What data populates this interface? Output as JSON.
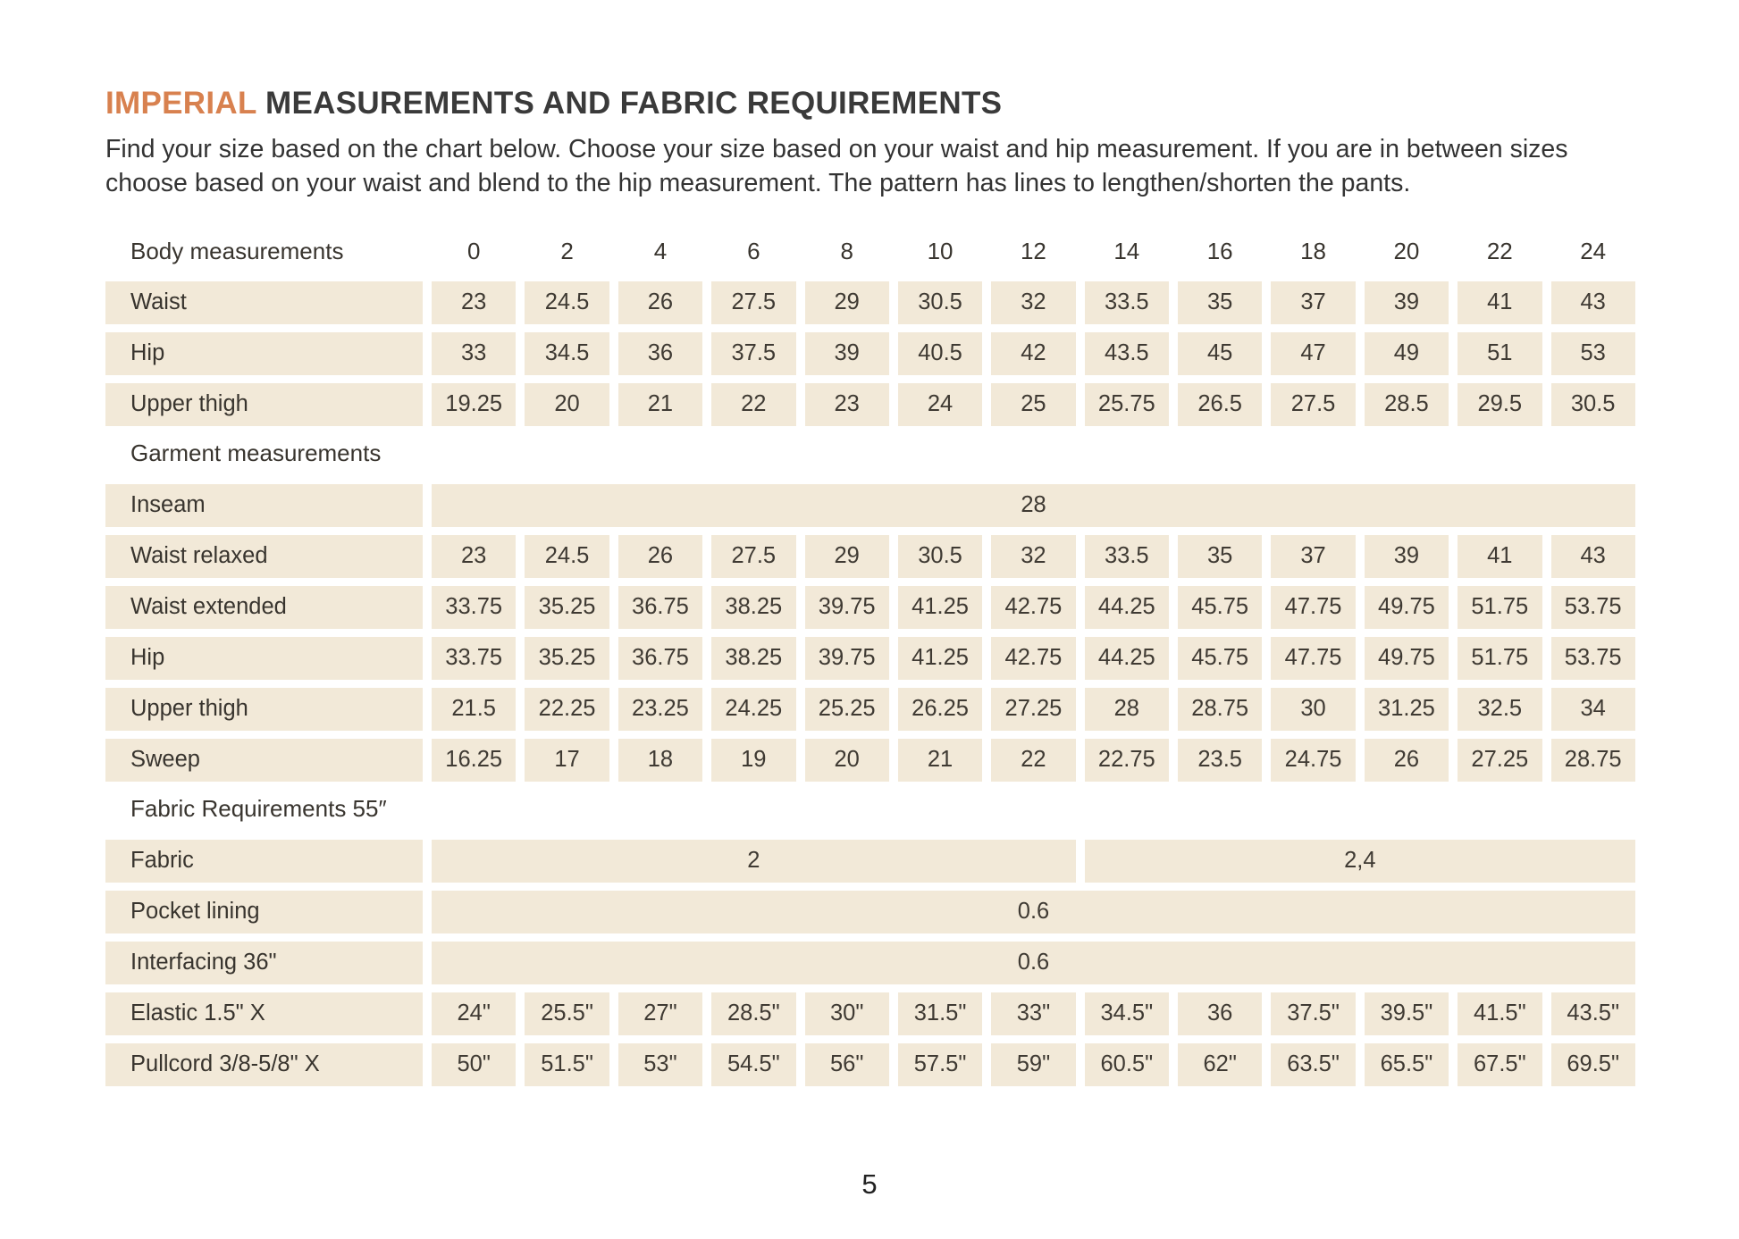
{
  "page": {
    "title": {
      "highlight": "IMPERIAL",
      "rest": "MEASUREMENTS AND FABRIC REQUIREMENTS"
    },
    "intro": "Find your size based on the chart below. Choose your size based on your waist and hip measurement. If you are in between sizes choose based on your waist and blend to the hip measurement. The pattern has lines to lengthen/shorten the pants.",
    "page_number": "5"
  },
  "colors": {
    "accent_orange": "#d8814f",
    "cell_beige": "#f2e9d8",
    "text_dark": "#38342e"
  },
  "table": {
    "sizes": [
      "0",
      "2",
      "4",
      "6",
      "8",
      "10",
      "12",
      "14",
      "16",
      "18",
      "20",
      "22",
      "24"
    ],
    "sections": [
      {
        "label": "Body measurements",
        "show_sizes": true,
        "rows": [
          {
            "label": "Waist",
            "cells": [
              {
                "t": "23",
                "s": 1
              },
              {
                "t": "24.5",
                "s": 1
              },
              {
                "t": "26",
                "s": 1
              },
              {
                "t": "27.5",
                "s": 1
              },
              {
                "t": "29",
                "s": 1
              },
              {
                "t": "30.5",
                "s": 1
              },
              {
                "t": "32",
                "s": 1
              },
              {
                "t": "33.5",
                "s": 1
              },
              {
                "t": "35",
                "s": 1
              },
              {
                "t": "37",
                "s": 1
              },
              {
                "t": "39",
                "s": 1
              },
              {
                "t": "41",
                "s": 1
              },
              {
                "t": "43",
                "s": 1
              }
            ]
          },
          {
            "label": "Hip",
            "cells": [
              {
                "t": "33",
                "s": 1
              },
              {
                "t": "34.5",
                "s": 1
              },
              {
                "t": "36",
                "s": 1
              },
              {
                "t": "37.5",
                "s": 1
              },
              {
                "t": "39",
                "s": 1
              },
              {
                "t": "40.5",
                "s": 1
              },
              {
                "t": "42",
                "s": 1
              },
              {
                "t": "43.5",
                "s": 1
              },
              {
                "t": "45",
                "s": 1
              },
              {
                "t": "47",
                "s": 1
              },
              {
                "t": "49",
                "s": 1
              },
              {
                "t": "51",
                "s": 1
              },
              {
                "t": "53",
                "s": 1
              }
            ]
          },
          {
            "label": "Upper thigh",
            "cells": [
              {
                "t": "19.25",
                "s": 1
              },
              {
                "t": "20",
                "s": 1
              },
              {
                "t": "21",
                "s": 1
              },
              {
                "t": "22",
                "s": 1
              },
              {
                "t": "23",
                "s": 1
              },
              {
                "t": "24",
                "s": 1
              },
              {
                "t": "25",
                "s": 1
              },
              {
                "t": "25.75",
                "s": 1
              },
              {
                "t": "26.5",
                "s": 1
              },
              {
                "t": "27.5",
                "s": 1
              },
              {
                "t": "28.5",
                "s": 1
              },
              {
                "t": "29.5",
                "s": 1
              },
              {
                "t": "30.5",
                "s": 1
              }
            ]
          }
        ]
      },
      {
        "label": "Garment measurements",
        "show_sizes": false,
        "rows": [
          {
            "label": "Inseam",
            "cells": [
              {
                "t": "28",
                "s": 13
              }
            ]
          },
          {
            "label": "Waist relaxed",
            "cells": [
              {
                "t": "23",
                "s": 1
              },
              {
                "t": "24.5",
                "s": 1
              },
              {
                "t": "26",
                "s": 1
              },
              {
                "t": "27.5",
                "s": 1
              },
              {
                "t": "29",
                "s": 1
              },
              {
                "t": "30.5",
                "s": 1
              },
              {
                "t": "32",
                "s": 1
              },
              {
                "t": "33.5",
                "s": 1
              },
              {
                "t": "35",
                "s": 1
              },
              {
                "t": "37",
                "s": 1
              },
              {
                "t": "39",
                "s": 1
              },
              {
                "t": "41",
                "s": 1
              },
              {
                "t": "43",
                "s": 1
              }
            ]
          },
          {
            "label": "Waist extended",
            "cells": [
              {
                "t": "33.75",
                "s": 1
              },
              {
                "t": "35.25",
                "s": 1
              },
              {
                "t": "36.75",
                "s": 1
              },
              {
                "t": "38.25",
                "s": 1
              },
              {
                "t": "39.75",
                "s": 1
              },
              {
                "t": "41.25",
                "s": 1
              },
              {
                "t": "42.75",
                "s": 1
              },
              {
                "t": "44.25",
                "s": 1
              },
              {
                "t": "45.75",
                "s": 1
              },
              {
                "t": "47.75",
                "s": 1
              },
              {
                "t": "49.75",
                "s": 1
              },
              {
                "t": "51.75",
                "s": 1
              },
              {
                "t": "53.75",
                "s": 1
              }
            ]
          },
          {
            "label": "Hip",
            "cells": [
              {
                "t": "33.75",
                "s": 1
              },
              {
                "t": "35.25",
                "s": 1
              },
              {
                "t": "36.75",
                "s": 1
              },
              {
                "t": "38.25",
                "s": 1
              },
              {
                "t": "39.75",
                "s": 1
              },
              {
                "t": "41.25",
                "s": 1
              },
              {
                "t": "42.75",
                "s": 1
              },
              {
                "t": "44.25",
                "s": 1
              },
              {
                "t": "45.75",
                "s": 1
              },
              {
                "t": "47.75",
                "s": 1
              },
              {
                "t": "49.75",
                "s": 1
              },
              {
                "t": "51.75",
                "s": 1
              },
              {
                "t": "53.75",
                "s": 1
              }
            ]
          },
          {
            "label": "Upper thigh",
            "cells": [
              {
                "t": "21.5",
                "s": 1
              },
              {
                "t": "22.25",
                "s": 1
              },
              {
                "t": "23.25",
                "s": 1
              },
              {
                "t": "24.25",
                "s": 1
              },
              {
                "t": "25.25",
                "s": 1
              },
              {
                "t": "26.25",
                "s": 1
              },
              {
                "t": "27.25",
                "s": 1
              },
              {
                "t": "28",
                "s": 1
              },
              {
                "t": "28.75",
                "s": 1
              },
              {
                "t": "30",
                "s": 1
              },
              {
                "t": "31.25",
                "s": 1
              },
              {
                "t": "32.5",
                "s": 1
              },
              {
                "t": "34",
                "s": 1
              }
            ]
          },
          {
            "label": "Sweep",
            "cells": [
              {
                "t": "16.25",
                "s": 1
              },
              {
                "t": "17",
                "s": 1
              },
              {
                "t": "18",
                "s": 1
              },
              {
                "t": "19",
                "s": 1
              },
              {
                "t": "20",
                "s": 1
              },
              {
                "t": "21",
                "s": 1
              },
              {
                "t": "22",
                "s": 1
              },
              {
                "t": "22.75",
                "s": 1
              },
              {
                "t": "23.5",
                "s": 1
              },
              {
                "t": "24.75",
                "s": 1
              },
              {
                "t": "26",
                "s": 1
              },
              {
                "t": "27.25",
                "s": 1
              },
              {
                "t": "28.75",
                "s": 1
              }
            ]
          }
        ]
      },
      {
        "label": "Fabric Requirements 55″",
        "show_sizes": false,
        "rows": [
          {
            "label": "Fabric",
            "cells": [
              {
                "t": "2",
                "s": 7
              },
              {
                "t": "2,4",
                "s": 6
              }
            ]
          },
          {
            "label": "Pocket lining",
            "cells": [
              {
                "t": "0.6",
                "s": 13
              }
            ]
          },
          {
            "label": "Interfacing 36\"",
            "cells": [
              {
                "t": "0.6",
                "s": 13
              }
            ]
          },
          {
            "label": "Elastic  1.5\" X",
            "cells": [
              {
                "t": "24\"",
                "s": 1
              },
              {
                "t": "25.5\"",
                "s": 1
              },
              {
                "t": "27\"",
                "s": 1
              },
              {
                "t": "28.5\"",
                "s": 1
              },
              {
                "t": "30\"",
                "s": 1
              },
              {
                "t": "31.5\"",
                "s": 1
              },
              {
                "t": "33\"",
                "s": 1
              },
              {
                "t": "34.5\"",
                "s": 1
              },
              {
                "t": "36",
                "s": 1
              },
              {
                "t": "37.5\"",
                "s": 1
              },
              {
                "t": "39.5\"",
                "s": 1
              },
              {
                "t": "41.5\"",
                "s": 1
              },
              {
                "t": "43.5\"",
                "s": 1
              }
            ]
          },
          {
            "label": "Pullcord 3/8-5/8\" X",
            "cells": [
              {
                "t": "50\"",
                "s": 1
              },
              {
                "t": "51.5\"",
                "s": 1
              },
              {
                "t": "53\"",
                "s": 1
              },
              {
                "t": "54.5\"",
                "s": 1
              },
              {
                "t": "56\"",
                "s": 1
              },
              {
                "t": "57.5\"",
                "s": 1
              },
              {
                "t": "59\"",
                "s": 1
              },
              {
                "t": "60.5\"",
                "s": 1
              },
              {
                "t": "62\"",
                "s": 1
              },
              {
                "t": "63.5\"",
                "s": 1
              },
              {
                "t": "65.5\"",
                "s": 1
              },
              {
                "t": "67.5\"",
                "s": 1
              },
              {
                "t": "69.5\"",
                "s": 1
              }
            ]
          }
        ]
      }
    ]
  }
}
